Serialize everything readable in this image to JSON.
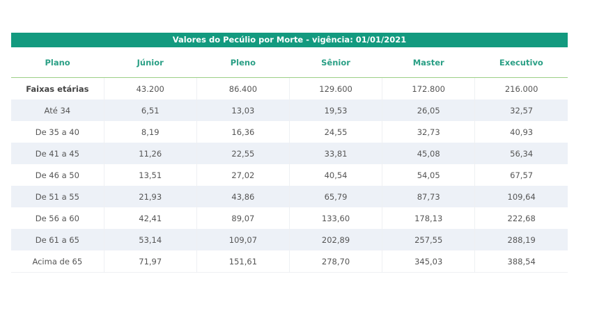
{
  "table": {
    "title": "Valores do Pecúlio por Morte - vigência: 01/01/2021",
    "headers": [
      "Plano",
      "Júnior",
      "Pleno",
      "Sênior",
      "Master",
      "Executivo"
    ],
    "rows": [
      [
        "Faixas etárias",
        "43.200",
        "86.400",
        "129.600",
        "172.800",
        "216.000"
      ],
      [
        "Até 34",
        "6,51",
        "13,03",
        "19,53",
        "26,05",
        "32,57"
      ],
      [
        "De 35 a 40",
        "8,19",
        "16,36",
        "24,55",
        "32,73",
        "40,93"
      ],
      [
        "De 41 a 45",
        "11,26",
        "22,55",
        "33,81",
        "45,08",
        "56,34"
      ],
      [
        "De 46 a 50",
        "13,51",
        "27,02",
        "40,54",
        "54,05",
        "67,57"
      ],
      [
        "De 51 a 55",
        "21,93",
        "43,86",
        "65,79",
        "87,73",
        "109,64"
      ],
      [
        "De 56 a 60",
        "42,41",
        "89,07",
        "133,60",
        "178,13",
        "222,68"
      ],
      [
        "De 61 a 65",
        "53,14",
        "109,07",
        "202,89",
        "257,55",
        "288,19"
      ],
      [
        "Acima de 65",
        "71,97",
        "151,61",
        "278,70",
        "345,03",
        "388,54"
      ]
    ]
  },
  "colors": {
    "title_bg": "#139a7f",
    "header_text": "#2a9f85",
    "stripe": "#edf1f7"
  }
}
